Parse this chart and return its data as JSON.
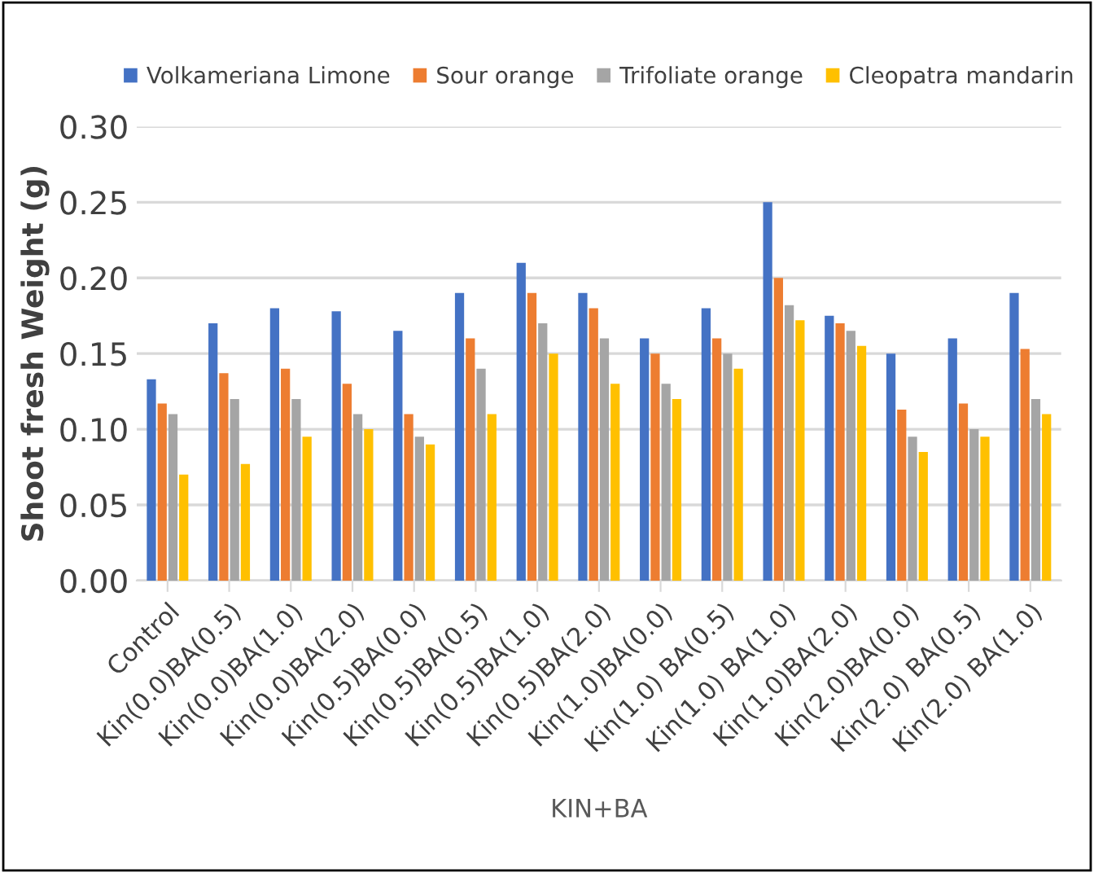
{
  "chart_data": {
    "type": "bar",
    "xlabel": "KIN+BA",
    "ylabel": "Shoot fresh Weight (g)",
    "categories": [
      "Control",
      "Kin(0.0)BA(0.5)",
      "Kin(0.0)BA(1.0)",
      "Kin(0.0)BA(2.0)",
      "Kin(0.5)BA(0.0)",
      "Kin(0.5)BA(0.5)",
      "Kin(0.5)BA(1.0)",
      "Kin(0.5)BA(2.0)",
      "Kin(1.0)BA(0.0)",
      "Kin(1.0) BA(0.5)",
      "Kin(1.0) BA(1.0)",
      "Kin(1.0)BA(2.0)",
      "Kin(2.0)BA(0.0)",
      "Kin(2.0) BA(0.5)",
      "Kin(2.0) BA(1.0)"
    ],
    "series": [
      {
        "name": "Volkameriana Limone",
        "color": "#4472c4",
        "values": [
          0.133,
          0.17,
          0.18,
          0.178,
          0.165,
          0.19,
          0.21,
          0.19,
          0.16,
          0.18,
          0.25,
          0.175,
          0.15,
          0.16,
          0.19
        ]
      },
      {
        "name": "Sour orange",
        "color": "#ed7d31",
        "values": [
          0.117,
          0.137,
          0.14,
          0.13,
          0.11,
          0.16,
          0.19,
          0.18,
          0.15,
          0.16,
          0.2,
          0.17,
          0.113,
          0.117,
          0.153
        ]
      },
      {
        "name": "Trifoliate orange",
        "color": "#a5a5a5",
        "values": [
          0.11,
          0.12,
          0.12,
          0.11,
          0.095,
          0.14,
          0.17,
          0.16,
          0.13,
          0.15,
          0.182,
          0.165,
          0.095,
          0.1,
          0.12
        ]
      },
      {
        "name": "Cleopatra mandarin",
        "color": "#ffc000",
        "values": [
          0.07,
          0.077,
          0.095,
          0.1,
          0.09,
          0.11,
          0.15,
          0.13,
          0.12,
          0.14,
          0.172,
          0.155,
          0.085,
          0.095,
          0.11
        ]
      }
    ],
    "ylim": [
      0,
      0.3
    ],
    "yticks": [
      {
        "value": 0,
        "label": "0.00"
      },
      {
        "value": 0.05,
        "label": "0.05"
      },
      {
        "value": 0.1,
        "label": "0.10"
      },
      {
        "value": 0.15,
        "label": "0.15"
      },
      {
        "value": 0.2,
        "label": "0.20"
      },
      {
        "value": 0.25,
        "label": "0.25"
      },
      {
        "value": 0.3,
        "label": "0.30"
      }
    ],
    "grid": "y",
    "legend": "top"
  }
}
